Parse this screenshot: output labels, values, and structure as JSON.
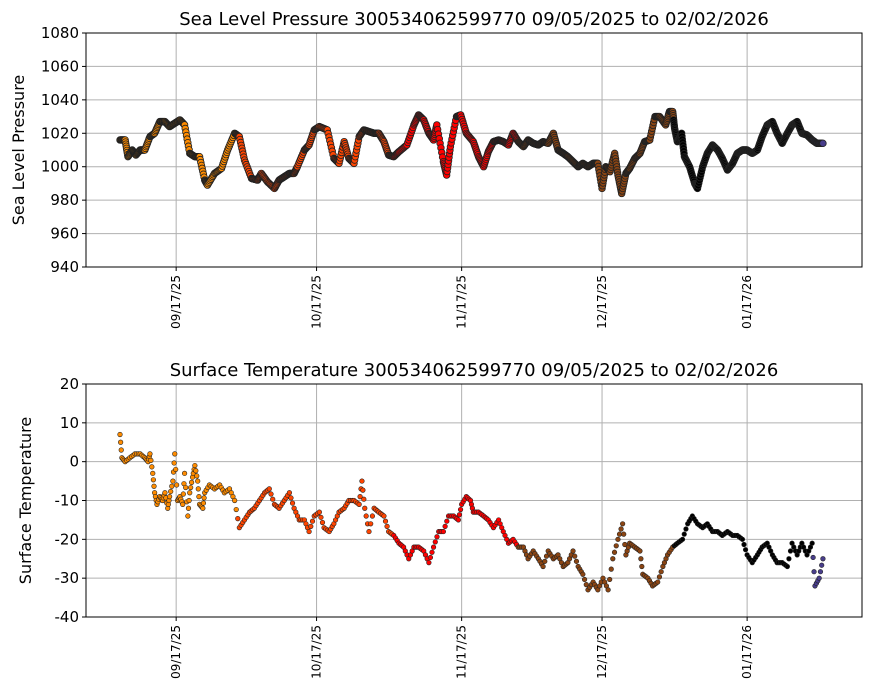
{
  "chart_data": [
    {
      "type": "scatter",
      "title": "Sea Level Pressure 300534062599770  09/05/2025 to 02/02/2026",
      "xlabel": "",
      "ylabel": "Sea Level Pressure",
      "x_unit": "days since 09/05/2025",
      "xlim": [
        -7.5,
        158
      ],
      "ylim": [
        940,
        1080
      ],
      "yticks": [
        940,
        960,
        980,
        1000,
        1020,
        1040,
        1060,
        1080
      ],
      "xticks": [
        {
          "day": 12,
          "label": "09/17/25"
        },
        {
          "day": 42,
          "label": "10/17/25"
        },
        {
          "day": 73,
          "label": "11/17/25"
        },
        {
          "day": 103,
          "label": "12/17/25"
        },
        {
          "day": 134,
          "label": "01/17/26"
        }
      ],
      "grid": true,
      "color_segments": [
        {
          "until": 25,
          "color": "#ff8c00"
        },
        {
          "until": 58.5,
          "color": "#ff4500"
        },
        {
          "until": 85,
          "color": "#ff0000"
        },
        {
          "until": 118.3,
          "color": "#8b4513"
        },
        {
          "until": 148,
          "color": "#000000"
        },
        {
          "until": 999,
          "color": "#483d8b"
        }
      ],
      "points": [
        [
          0,
          1016
        ],
        [
          1.1,
          1016
        ],
        [
          1.7,
          1006
        ],
        [
          2.6,
          1010
        ],
        [
          3.4,
          1007
        ],
        [
          4.3,
          1010
        ],
        [
          5.3,
          1010
        ],
        [
          6.4,
          1018
        ],
        [
          7.4,
          1020
        ],
        [
          8.5,
          1027
        ],
        [
          9.6,
          1027
        ],
        [
          10.6,
          1024
        ],
        [
          11.7,
          1026
        ],
        [
          12.8,
          1028
        ],
        [
          13.8,
          1025
        ],
        [
          14.9,
          1008
        ],
        [
          16,
          1006
        ],
        [
          17,
          1006
        ],
        [
          18.1,
          992
        ],
        [
          18.7,
          989
        ],
        [
          20.2,
          996
        ],
        [
          21.7,
          999
        ],
        [
          23,
          1010
        ],
        [
          24.5,
          1020
        ],
        [
          25.5,
          1018
        ],
        [
          26.6,
          1004
        ],
        [
          28.1,
          993
        ],
        [
          29.4,
          992
        ],
        [
          30.2,
          996
        ],
        [
          31.5,
          991
        ],
        [
          33,
          987
        ],
        [
          34,
          992
        ],
        [
          35.1,
          994
        ],
        [
          36.2,
          996
        ],
        [
          37.2,
          996
        ],
        [
          37.9,
          1000
        ],
        [
          39.4,
          1010
        ],
        [
          40.4,
          1013
        ],
        [
          41.5,
          1022
        ],
        [
          42.6,
          1024
        ],
        [
          44.3,
          1022
        ],
        [
          45.7,
          1005
        ],
        [
          46.8,
          1002
        ],
        [
          47.9,
          1015
        ],
        [
          48.9,
          1005
        ],
        [
          50,
          1002
        ],
        [
          51.1,
          1018
        ],
        [
          52.1,
          1022
        ],
        [
          53.2,
          1021
        ],
        [
          54.3,
          1020
        ],
        [
          55.3,
          1020
        ],
        [
          56.4,
          1015
        ],
        [
          57.4,
          1007
        ],
        [
          58.5,
          1006
        ],
        [
          59.6,
          1009
        ],
        [
          61.3,
          1013
        ],
        [
          62.8,
          1025
        ],
        [
          63.8,
          1031
        ],
        [
          64.9,
          1028
        ],
        [
          66,
          1020
        ],
        [
          67,
          1016
        ],
        [
          67.7,
          1025
        ],
        [
          69.1,
          1003
        ],
        [
          69.8,
          995
        ],
        [
          70.6,
          1012
        ],
        [
          71.9,
          1030
        ],
        [
          72.8,
          1031
        ],
        [
          74,
          1020
        ],
        [
          75.5,
          1015
        ],
        [
          76.6,
          1006
        ],
        [
          77.7,
          1000
        ],
        [
          78.7,
          1009
        ],
        [
          79.8,
          1015
        ],
        [
          80.9,
          1016
        ],
        [
          81.9,
          1015
        ],
        [
          83,
          1013
        ],
        [
          84,
          1020
        ],
        [
          85.1,
          1015
        ],
        [
          86.2,
          1012
        ],
        [
          87.2,
          1016
        ],
        [
          88.3,
          1014
        ],
        [
          89.4,
          1013
        ],
        [
          90.4,
          1015
        ],
        [
          91.5,
          1014
        ],
        [
          92.6,
          1020
        ],
        [
          93.6,
          1010
        ],
        [
          94.7,
          1008
        ],
        [
          95.7,
          1006
        ],
        [
          96.8,
          1003
        ],
        [
          97.9,
          1000
        ],
        [
          98.9,
          1002
        ],
        [
          100,
          1000
        ],
        [
          101.1,
          1002
        ],
        [
          102.1,
          1002
        ],
        [
          103,
          987
        ],
        [
          103.8,
          1000
        ],
        [
          104.7,
          997
        ],
        [
          105.7,
          1008
        ],
        [
          106.4,
          995
        ],
        [
          107.2,
          984
        ],
        [
          108.1,
          996
        ],
        [
          108.9,
          999
        ],
        [
          110,
          1005
        ],
        [
          111.1,
          1008
        ],
        [
          112.1,
          1015
        ],
        [
          113.2,
          1016
        ],
        [
          114.3,
          1030
        ],
        [
          115.3,
          1030
        ],
        [
          116.6,
          1025
        ],
        [
          117.4,
          1033
        ],
        [
          118.1,
          1033
        ],
        [
          118.5,
          1023
        ],
        [
          119.1,
          1015
        ],
        [
          120,
          1020
        ],
        [
          120.6,
          1006
        ],
        [
          121.7,
          1000
        ],
        [
          122.8,
          990
        ],
        [
          123.4,
          987
        ],
        [
          124.5,
          1000
        ],
        [
          125.5,
          1008
        ],
        [
          126.6,
          1013
        ],
        [
          127.7,
          1010
        ],
        [
          128.7,
          1005
        ],
        [
          129.8,
          998
        ],
        [
          130.9,
          1002
        ],
        [
          131.9,
          1008
        ],
        [
          133,
          1010
        ],
        [
          134,
          1010
        ],
        [
          135.1,
          1008
        ],
        [
          136.2,
          1010
        ],
        [
          137.2,
          1018
        ],
        [
          138.3,
          1025
        ],
        [
          139.4,
          1027
        ],
        [
          140.4,
          1020
        ],
        [
          141.5,
          1014
        ],
        [
          142.6,
          1020
        ],
        [
          143.6,
          1025
        ],
        [
          144.7,
          1027
        ],
        [
          145.7,
          1020
        ],
        [
          146.8,
          1019
        ],
        [
          147.9,
          1016
        ],
        [
          148.9,
          1014
        ],
        [
          150.2,
          1014
        ]
      ]
    },
    {
      "type": "scatter",
      "title": "Surface Temperature 300534062599770  09/05/2025 to 02/02/2026",
      "xlabel": "",
      "ylabel": "Surface Temperature",
      "x_unit": "days since 09/05/2025",
      "xlim": [
        -7.5,
        158
      ],
      "ylim": [
        -40,
        20
      ],
      "yticks": [
        -40,
        -30,
        -20,
        -10,
        0,
        10,
        20
      ],
      "xticks": [
        {
          "day": 12,
          "label": "09/17/25"
        },
        {
          "day": 42,
          "label": "10/17/25"
        },
        {
          "day": 73,
          "label": "11/17/25"
        },
        {
          "day": 103,
          "label": "12/17/25"
        },
        {
          "day": 134,
          "label": "01/17/26"
        }
      ],
      "grid": true,
      "color_segments": [
        {
          "until": 25,
          "color": "#ff8c00"
        },
        {
          "until": 58.5,
          "color": "#ff4500"
        },
        {
          "until": 85,
          "color": "#ff0000"
        },
        {
          "until": 118.3,
          "color": "#8b4513"
        },
        {
          "until": 148,
          "color": "#000000"
        },
        {
          "until": 999,
          "color": "#483d8b"
        }
      ],
      "points": [
        [
          0,
          7
        ],
        [
          0.4,
          1
        ],
        [
          1.1,
          0
        ],
        [
          2.1,
          1
        ],
        [
          3.2,
          2
        ],
        [
          4.3,
          2
        ],
        [
          5.3,
          1
        ],
        [
          6,
          0
        ],
        [
          6.4,
          2
        ],
        [
          7,
          -3
        ],
        [
          7.4,
          -8
        ],
        [
          7.9,
          -11
        ],
        [
          8.5,
          -9
        ],
        [
          9.1,
          -10
        ],
        [
          9.6,
          -8
        ],
        [
          10.2,
          -12
        ],
        [
          10.6,
          -9
        ],
        [
          11.3,
          -5
        ],
        [
          11.7,
          2
        ],
        [
          12.3,
          -10
        ],
        [
          12.8,
          -9
        ],
        [
          13.4,
          -11
        ],
        [
          13.8,
          -3
        ],
        [
          14.5,
          -14
        ],
        [
          14.9,
          -8
        ],
        [
          15.5,
          -4
        ],
        [
          16,
          -1
        ],
        [
          16.6,
          -5
        ],
        [
          17,
          -11
        ],
        [
          17.7,
          -12
        ],
        [
          18.1,
          -8
        ],
        [
          19.1,
          -6
        ],
        [
          20.2,
          -7
        ],
        [
          21.3,
          -6
        ],
        [
          22.3,
          -8
        ],
        [
          23.4,
          -7
        ],
        [
          24.5,
          -10
        ],
        [
          25.5,
          -17
        ],
        [
          26.6,
          -15
        ],
        [
          27.7,
          -13
        ],
        [
          28.7,
          -12
        ],
        [
          29.8,
          -10
        ],
        [
          30.9,
          -8
        ],
        [
          31.9,
          -7
        ],
        [
          33,
          -11
        ],
        [
          34,
          -12
        ],
        [
          35.1,
          -10
        ],
        [
          36.2,
          -8
        ],
        [
          37.2,
          -12
        ],
        [
          38.3,
          -15
        ],
        [
          39.4,
          -15
        ],
        [
          40.4,
          -18
        ],
        [
          41.5,
          -14
        ],
        [
          42.6,
          -13
        ],
        [
          43.6,
          -17
        ],
        [
          44.7,
          -18
        ],
        [
          45.7,
          -16
        ],
        [
          46.8,
          -13
        ],
        [
          47.9,
          -12
        ],
        [
          48.9,
          -10
        ],
        [
          50,
          -10
        ],
        [
          51.1,
          -11
        ],
        [
          51.7,
          -5
        ],
        [
          52.3,
          -12
        ],
        [
          53.2,
          -18
        ],
        [
          54.3,
          -12
        ],
        [
          55.3,
          -13
        ],
        [
          56.4,
          -14
        ],
        [
          57.4,
          -18
        ],
        [
          58.5,
          -19
        ],
        [
          59.6,
          -21
        ],
        [
          60.6,
          -22
        ],
        [
          61.7,
          -25
        ],
        [
          62.8,
          -22
        ],
        [
          63.8,
          -22
        ],
        [
          64.9,
          -23
        ],
        [
          66,
          -26
        ],
        [
          67,
          -22
        ],
        [
          68.1,
          -18
        ],
        [
          69.1,
          -18
        ],
        [
          70.2,
          -14
        ],
        [
          71.3,
          -14
        ],
        [
          72.3,
          -15
        ],
        [
          73,
          -11
        ],
        [
          74,
          -9
        ],
        [
          74.9,
          -10
        ],
        [
          75.5,
          -13
        ],
        [
          76.6,
          -13
        ],
        [
          77.7,
          -14
        ],
        [
          78.7,
          -15
        ],
        [
          79.8,
          -17
        ],
        [
          80.9,
          -15
        ],
        [
          81.9,
          -18
        ],
        [
          83,
          -21
        ],
        [
          84,
          -20
        ],
        [
          85.1,
          -22
        ],
        [
          86.2,
          -22
        ],
        [
          87.2,
          -25
        ],
        [
          88.3,
          -23
        ],
        [
          89.4,
          -25
        ],
        [
          90.4,
          -27
        ],
        [
          91.5,
          -23
        ],
        [
          92.6,
          -25
        ],
        [
          93.6,
          -24
        ],
        [
          94.7,
          -27
        ],
        [
          95.7,
          -26
        ],
        [
          96.8,
          -23
        ],
        [
          97.9,
          -27
        ],
        [
          98.9,
          -29
        ],
        [
          100,
          -33
        ],
        [
          101.1,
          -31
        ],
        [
          102.1,
          -33
        ],
        [
          103.2,
          -30
        ],
        [
          104.3,
          -33
        ],
        [
          105.3,
          -25
        ],
        [
          106.4,
          -20
        ],
        [
          107.4,
          -16
        ],
        [
          108.1,
          -24
        ],
        [
          108.9,
          -21
        ],
        [
          110,
          -22
        ],
        [
          111.1,
          -23
        ],
        [
          111.7,
          -29
        ],
        [
          112.8,
          -30
        ],
        [
          113.8,
          -32
        ],
        [
          114.9,
          -31
        ],
        [
          116,
          -27
        ],
        [
          117,
          -24
        ],
        [
          118.1,
          -22
        ],
        [
          119.1,
          -21
        ],
        [
          120.2,
          -20
        ],
        [
          121.3,
          -16
        ],
        [
          122.3,
          -14
        ],
        [
          123.4,
          -16
        ],
        [
          124.5,
          -17
        ],
        [
          125.5,
          -16
        ],
        [
          126.6,
          -18
        ],
        [
          127.7,
          -18
        ],
        [
          128.7,
          -19
        ],
        [
          129.8,
          -18
        ],
        [
          130.9,
          -19
        ],
        [
          131.9,
          -19
        ],
        [
          133,
          -20
        ],
        [
          134,
          -24
        ],
        [
          135.1,
          -26
        ],
        [
          136.2,
          -24
        ],
        [
          137.2,
          -22
        ],
        [
          138.3,
          -21
        ],
        [
          139.4,
          -24
        ],
        [
          140.4,
          -26
        ],
        [
          141.5,
          -26
        ],
        [
          142.6,
          -27
        ],
        [
          143.6,
          -21
        ],
        [
          144.7,
          -24
        ],
        [
          145.7,
          -21
        ],
        [
          146.8,
          -24
        ],
        [
          147.9,
          -21
        ],
        [
          148.5,
          -32
        ],
        [
          149.4,
          -30
        ],
        [
          150.2,
          -25
        ]
      ]
    }
  ]
}
